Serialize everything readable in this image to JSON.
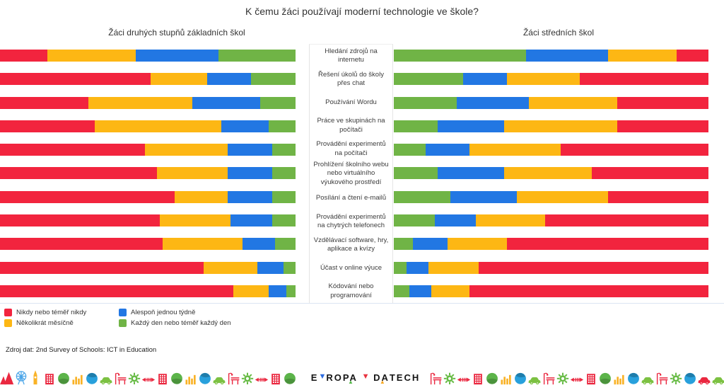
{
  "title": "K čemu žáci používají moderní technologie ve škole?",
  "left_header": "Žáci druhých stupňů základních škol",
  "right_header": "Žáci středních škol",
  "source": "Zdroj dat: 2nd Survey of Schools: ICT in Education",
  "legend": {
    "items": [
      {
        "key": "never",
        "label": "Nikdy nebo téměř nikdy"
      },
      {
        "key": "monthly",
        "label": "Několikrát měsíčně"
      },
      {
        "key": "weekly",
        "label": "Alespoň jednou týdně"
      },
      {
        "key": "daily",
        "label": "Každý den nebo téměř každý den"
      }
    ]
  },
  "chart_data": {
    "type": "bar",
    "stacked": true,
    "orientation": "horizontal",
    "unit": "percent",
    "xlim": [
      0,
      100
    ],
    "grid": false,
    "legend_position": "bottom-left",
    "colors": {
      "never": "#f2243e",
      "monthly": "#fdb714",
      "weekly": "#2277e3",
      "daily": "#70b446"
    },
    "series_names": {
      "never": "Nikdy nebo téměř nikdy",
      "monthly": "Několikrát měsíčně",
      "weekly": "Alespoň jednou týdně",
      "daily": "Každý den nebo téměř každý den"
    },
    "categories": [
      "Hledání zdrojů na internetu",
      "Řešení úkolů do školy přes chat",
      "Používání Wordu",
      "Práce ve skupinách na počítači",
      "Provádění experimentů na počítači",
      "Prohlížení školního webu nebo virtuálního výukového prostředí",
      "Posílání a čtení e-mailů",
      "Provádění experimentů na chytrých telefonech",
      "Vzdělávací software, hry, aplikace a kvízy",
      "Účast v online výuce",
      "Kódování nebo programování"
    ],
    "charts": [
      {
        "title": "Žáci druhých stupňů základních škol",
        "segment_order": [
          "never",
          "monthly",
          "weekly",
          "daily"
        ],
        "series": {
          "never": [
            16,
            51,
            30,
            32,
            49,
            53,
            59,
            54,
            55,
            69,
            79
          ],
          "monthly": [
            30,
            19,
            35,
            43,
            28,
            24,
            18,
            24,
            27,
            18,
            12
          ],
          "weekly": [
            28,
            15,
            23,
            16,
            15,
            15,
            15,
            14,
            11,
            9,
            6
          ],
          "daily": [
            26,
            15,
            12,
            9,
            8,
            8,
            8,
            8,
            7,
            4,
            3
          ]
        }
      },
      {
        "title": "Žáci středních škol",
        "segment_order": [
          "daily",
          "weekly",
          "monthly",
          "never"
        ],
        "series": {
          "never": [
            10,
            41,
            29,
            29,
            47,
            37,
            32,
            52,
            64,
            73,
            76
          ],
          "monthly": [
            22,
            23,
            28,
            36,
            29,
            28,
            29,
            22,
            19,
            16,
            12
          ],
          "weekly": [
            26,
            14,
            23,
            21,
            14,
            21,
            21,
            13,
            11,
            7,
            7
          ],
          "daily": [
            42,
            22,
            20,
            14,
            10,
            14,
            18,
            13,
            6,
            4,
            5
          ]
        }
      }
    ]
  },
  "logo": {
    "alt": "EVROPA V DATECH",
    "parts": [
      {
        "k": "t",
        "v": "E"
      },
      {
        "k": "v",
        "c": "#2d6ce0"
      },
      {
        "k": "t",
        "v": "ROPA"
      },
      {
        "k": "a",
        "c": "#56b84a"
      },
      {
        "k": "t",
        "v": " "
      },
      {
        "k": "v",
        "c": "#e8333f"
      },
      {
        "k": "t",
        "v": " D"
      },
      {
        "k": "t",
        "v": "A"
      },
      {
        "k": "a",
        "c": "#f7a823"
      },
      {
        "k": "t",
        "v": "TECH"
      }
    ]
  },
  "decor": {
    "left_strip": [
      {
        "icon": "mountains",
        "color": "#ea2840"
      },
      {
        "icon": "ferris-wheel",
        "color": "#4ba5e8"
      },
      {
        "icon": "tower",
        "color": "#f9b226"
      },
      {
        "icon": "building",
        "color": "#ea2840"
      },
      {
        "icon": "globe-land",
        "color": "#5cb44a"
      },
      {
        "icon": "chart-bars",
        "color": "#f9b226"
      },
      {
        "icon": "globe-swirl",
        "color": "#28a0dc"
      },
      {
        "icon": "car",
        "color": "#7cc142"
      },
      {
        "icon": "lamp-bench",
        "color": "#ea2840"
      },
      {
        "icon": "gear",
        "color": "#67bb45"
      },
      {
        "icon": "arrows",
        "color": "#ea2840"
      },
      {
        "icon": "building",
        "color": "#ea2840"
      },
      {
        "icon": "globe-land",
        "color": "#5cb44a"
      },
      {
        "icon": "chart-bars",
        "color": "#f9b226"
      },
      {
        "icon": "globe-swirl",
        "color": "#28a0dc"
      },
      {
        "icon": "car",
        "color": "#7cc142"
      },
      {
        "icon": "lamp-bench",
        "color": "#ea2840"
      },
      {
        "icon": "gear",
        "color": "#67bb45"
      },
      {
        "icon": "arrows",
        "color": "#ea2840"
      },
      {
        "icon": "building",
        "color": "#ea2840"
      },
      {
        "icon": "globe-land",
        "color": "#5cb44a"
      }
    ],
    "right_strip": [
      {
        "icon": "lamp-bench",
        "color": "#ea2840"
      },
      {
        "icon": "gear",
        "color": "#67bb45"
      },
      {
        "icon": "arrows",
        "color": "#ea2840"
      },
      {
        "icon": "building",
        "color": "#ea2840"
      },
      {
        "icon": "globe-land",
        "color": "#5cb44a"
      },
      {
        "icon": "chart-bars",
        "color": "#f9b226"
      },
      {
        "icon": "globe-swirl",
        "color": "#28a0dc"
      },
      {
        "icon": "car",
        "color": "#7cc142"
      },
      {
        "icon": "lamp-bench",
        "color": "#ea2840"
      },
      {
        "icon": "gear",
        "color": "#67bb45"
      },
      {
        "icon": "arrows",
        "color": "#ea2840"
      },
      {
        "icon": "building",
        "color": "#ea2840"
      },
      {
        "icon": "globe-land",
        "color": "#5cb44a"
      },
      {
        "icon": "chart-bars",
        "color": "#f9b226"
      },
      {
        "icon": "globe-swirl",
        "color": "#28a0dc"
      },
      {
        "icon": "car",
        "color": "#7cc142"
      },
      {
        "icon": "lamp-bench",
        "color": "#ea2840"
      },
      {
        "icon": "gear",
        "color": "#67bb45"
      },
      {
        "icon": "globe-swirl",
        "color": "#28a0dc"
      },
      {
        "icon": "car",
        "color": "#ea2840"
      },
      {
        "icon": "car",
        "color": "#7cc142"
      }
    ]
  }
}
